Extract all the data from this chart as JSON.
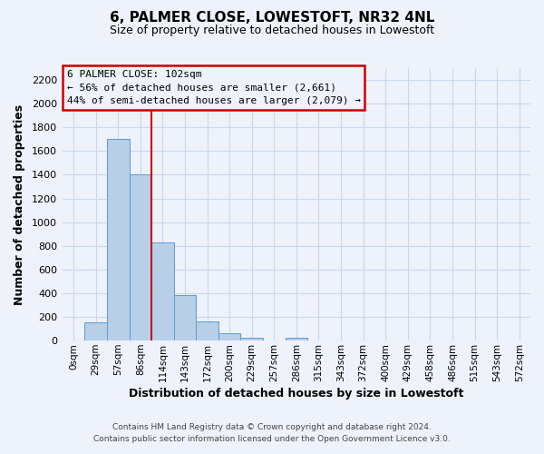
{
  "title": "6, PALMER CLOSE, LOWESTOFT, NR32 4NL",
  "subtitle": "Size of property relative to detached houses in Lowestoft",
  "xlabel": "Distribution of detached houses by size in Lowestoft",
  "ylabel": "Number of detached properties",
  "bar_labels": [
    "0sqm",
    "29sqm",
    "57sqm",
    "86sqm",
    "114sqm",
    "143sqm",
    "172sqm",
    "200sqm",
    "229sqm",
    "257sqm",
    "286sqm",
    "315sqm",
    "343sqm",
    "372sqm",
    "400sqm",
    "429sqm",
    "458sqm",
    "486sqm",
    "515sqm",
    "543sqm",
    "572sqm"
  ],
  "bar_values": [
    0,
    155,
    1700,
    1400,
    830,
    385,
    160,
    60,
    25,
    0,
    25,
    0,
    0,
    0,
    0,
    0,
    0,
    0,
    0,
    0,
    0
  ],
  "bar_color": "#b8cfe8",
  "bar_edge_color": "#5b9bd5",
  "vline_x": 3.5,
  "vline_color": "#cc0000",
  "ylim": [
    0,
    2300
  ],
  "yticks": [
    0,
    200,
    400,
    600,
    800,
    1000,
    1200,
    1400,
    1600,
    1800,
    2000,
    2200
  ],
  "annotation_title": "6 PALMER CLOSE: 102sqm",
  "annotation_line1": "← 56% of detached houses are smaller (2,661)",
  "annotation_line2": "44% of semi-detached houses are larger (2,079) →",
  "annotation_box_edge_color": "#cc0000",
  "grid_color": "#c8d8ec",
  "background_color": "#eef2fa",
  "footer_line1": "Contains HM Land Registry data © Crown copyright and database right 2024.",
  "footer_line2": "Contains public sector information licensed under the Open Government Licence v3.0."
}
